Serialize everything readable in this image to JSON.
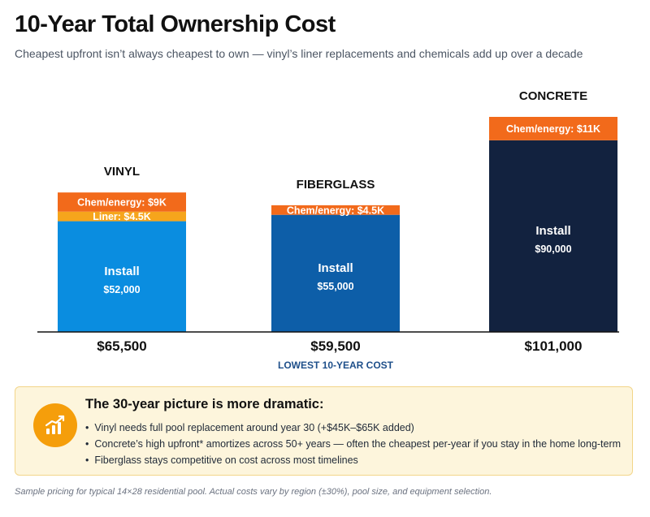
{
  "chart_data": {
    "type": "bar",
    "stacked": true,
    "title": "10-Year Total Ownership Cost",
    "subtitle": "Cheapest upfront isn’t always cheapest to own — vinyl’s liner replacements and chemicals add up over a decade",
    "categories": [
      "VINYL",
      "FIBERGLASS",
      "CONCRETE"
    ],
    "totals": [
      "$65,500",
      "$59,500",
      "$101,000"
    ],
    "highlight": {
      "category_index": 1,
      "label": "LOWEST 10-YEAR COST",
      "color": "#1e4f8a"
    },
    "bars": [
      {
        "category": "VINYL",
        "segments": [
          {
            "name": "Install",
            "value": 52000,
            "label": "Install",
            "value_label": "$52,000",
            "color": "#0a8de0"
          },
          {
            "name": "Liner",
            "value": 4500,
            "label": "Liner: $4.5K",
            "color": "#f6a51c"
          },
          {
            "name": "Chem/energy",
            "value": 9000,
            "label": "Chem/energy: $9K",
            "color": "#f26a1b"
          }
        ]
      },
      {
        "category": "FIBERGLASS",
        "segments": [
          {
            "name": "Install",
            "value": 55000,
            "label": "Install",
            "value_label": "$55,000",
            "color": "#0d5ea8"
          },
          {
            "name": "Chem/energy",
            "value": 4500,
            "label": "Chem/energy: $4.5K",
            "color": "#f26a1b"
          }
        ]
      },
      {
        "category": "CONCRETE",
        "segments": [
          {
            "name": "Install",
            "value": 90000,
            "label": "Install",
            "value_label": "$90,000",
            "color": "#12223f"
          },
          {
            "name": "Chem/energy",
            "value": 11000,
            "label": "Chem/energy: $11K",
            "color": "#f26a1b"
          }
        ]
      }
    ],
    "ylim": [
      0,
      101000
    ],
    "grid": false,
    "legend": "none"
  },
  "callout": {
    "icon": "growth-chart-icon",
    "icon_color": "#f59e0b",
    "heading": "The 30-year picture is more dramatic:",
    "bullets": [
      "Vinyl needs full pool replacement around year 30 (+$45K–$65K added)",
      "Concrete’s high upfront* amortizes across 50+ years — often the cheapest per-year if you stay in the home long-term",
      "Fiberglass stays competitive on cost across most timelines"
    ]
  },
  "footnote": "Sample pricing for typical 14×28 residential pool. Actual costs vary by region (±30%), pool size, and equipment selection."
}
